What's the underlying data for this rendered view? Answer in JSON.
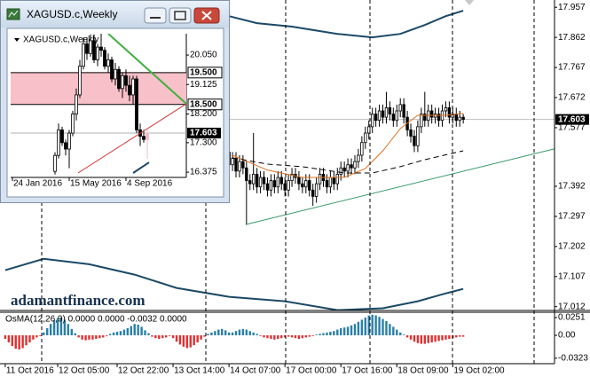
{
  "window": {
    "title": "XAGUSD.c,Weekly"
  },
  "watermark": "adamantfinance.com",
  "chart_data": [
    {
      "type": "candlestick",
      "x": [
        64,
        65,
        66,
        67,
        68,
        69,
        70,
        71,
        72,
        73,
        74,
        75,
        76,
        77,
        78,
        79,
        80,
        81,
        82,
        83,
        84,
        85,
        86,
        87,
        88,
        89,
        90,
        91,
        92,
        93,
        94,
        95,
        96,
        97,
        98,
        99,
        100,
        101,
        102,
        103,
        104,
        105,
        106,
        107,
        108,
        109,
        110,
        111,
        112,
        113,
        114,
        115,
        116,
        117,
        118,
        119,
        120,
        121,
        122,
        123,
        124,
        125,
        126,
        127,
        128,
        129,
        130,
        131
      ],
      "open": [
        17.5,
        17.46,
        17.48,
        17.44,
        17.47,
        17.45,
        17.41,
        17.4,
        17.43,
        17.39,
        17.42,
        17.4,
        17.38,
        17.41,
        17.39,
        17.42,
        17.4,
        17.38,
        17.41,
        17.43,
        17.42,
        17.4,
        17.39,
        17.41,
        17.38,
        17.36,
        17.4,
        17.43,
        17.41,
        17.39,
        17.42,
        17.4,
        17.43,
        17.45,
        17.44,
        17.46,
        17.45,
        17.47,
        17.49,
        17.53,
        17.56,
        17.58,
        17.62,
        17.6,
        17.63,
        17.61,
        17.64,
        17.62,
        17.6,
        17.63,
        17.65,
        17.61,
        17.57,
        17.55,
        17.52,
        17.58,
        17.62,
        17.6,
        17.63,
        17.61,
        17.62,
        17.6,
        17.63,
        17.64,
        17.61,
        17.62,
        17.6,
        17.61
      ],
      "high": [
        17.52,
        17.5,
        17.5,
        17.49,
        17.49,
        17.47,
        17.43,
        17.56,
        17.45,
        17.44,
        17.44,
        17.42,
        17.43,
        17.43,
        17.44,
        17.44,
        17.42,
        17.43,
        17.45,
        17.45,
        17.44,
        17.42,
        17.43,
        17.43,
        17.4,
        17.42,
        17.45,
        17.45,
        17.43,
        17.44,
        17.44,
        17.45,
        17.47,
        17.47,
        17.48,
        17.48,
        17.49,
        17.51,
        17.55,
        17.58,
        17.6,
        17.64,
        17.64,
        17.65,
        17.65,
        17.69,
        17.66,
        17.64,
        17.65,
        17.67,
        17.67,
        17.63,
        17.59,
        17.57,
        17.6,
        17.64,
        17.69,
        17.65,
        17.65,
        17.64,
        17.64,
        17.65,
        17.66,
        17.66,
        17.64,
        17.64,
        17.63,
        17.62
      ],
      "low": [
        17.44,
        17.44,
        17.42,
        17.42,
        17.43,
        17.27,
        17.38,
        17.38,
        17.37,
        17.37,
        17.38,
        17.36,
        17.36,
        17.37,
        17.37,
        17.38,
        17.36,
        17.36,
        17.39,
        17.4,
        17.38,
        17.37,
        17.37,
        17.36,
        17.33,
        17.34,
        17.38,
        17.39,
        17.37,
        17.37,
        17.38,
        17.38,
        17.41,
        17.42,
        17.42,
        17.43,
        17.43,
        17.45,
        17.47,
        17.51,
        17.54,
        17.56,
        17.58,
        17.58,
        17.59,
        17.59,
        17.6,
        17.58,
        17.58,
        17.61,
        17.59,
        17.55,
        17.53,
        17.5,
        17.5,
        17.56,
        17.58,
        17.58,
        17.59,
        17.59,
        17.58,
        17.58,
        17.61,
        17.59,
        17.59,
        17.58,
        17.58,
        17.59
      ],
      "close": [
        17.46,
        17.48,
        17.44,
        17.47,
        17.45,
        17.41,
        17.4,
        17.43,
        17.39,
        17.42,
        17.4,
        17.38,
        17.41,
        17.39,
        17.42,
        17.4,
        17.38,
        17.41,
        17.43,
        17.42,
        17.4,
        17.39,
        17.41,
        17.38,
        17.36,
        17.4,
        17.43,
        17.41,
        17.39,
        17.42,
        17.4,
        17.43,
        17.45,
        17.44,
        17.46,
        17.45,
        17.47,
        17.49,
        17.53,
        17.56,
        17.58,
        17.62,
        17.6,
        17.63,
        17.61,
        17.64,
        17.62,
        17.6,
        17.63,
        17.65,
        17.61,
        17.57,
        17.55,
        17.52,
        17.58,
        17.62,
        17.6,
        17.63,
        17.61,
        17.62,
        17.6,
        17.63,
        17.64,
        17.61,
        17.62,
        17.6,
        17.61,
        17.603
      ],
      "color_up": "#ffffff",
      "color_down": "#000000",
      "xlim": [
        -1.5,
        157.1
      ],
      "ylim": [
        17.0,
        17.98
      ],
      "yticks": [
        17.957,
        17.862,
        17.767,
        17.672,
        17.577,
        17.392,
        17.297,
        17.202,
        17.107,
        17.012
      ],
      "xticks": [
        {
          "value": 0,
          "label": "11 Oct 2016"
        },
        {
          "value": 15,
          "label": "12 Oct 05:00"
        },
        {
          "value": 32,
          "label": "12 Oct 22:00"
        },
        {
          "value": 48,
          "label": "13 Oct 14:00"
        },
        {
          "value": 64,
          "label": "14 Oct 07:00"
        },
        {
          "value": 80,
          "label": "17 Oct 00:00"
        },
        {
          "value": 96,
          "label": "17 Oct 16:00"
        },
        {
          "value": 112,
          "label": "18 Oct 09:00"
        },
        {
          "value": 128,
          "label": "19 Oct 02:00"
        }
      ],
      "current_price": 17.603,
      "overlays": [
        {
          "color": "#1b4966",
          "width": 2,
          "x": [
            64,
            72,
            82,
            95,
            105,
            113,
            120,
            126,
            131
          ],
          "values": [
            17.929,
            17.907,
            17.896,
            17.873,
            17.862,
            17.873,
            17.901,
            17.929,
            17.946
          ]
        },
        {
          "color": "#1b4966",
          "width": 2,
          "x": [
            0,
            11,
            24,
            37,
            49,
            64,
            80,
            95,
            108,
            118,
            125,
            131
          ],
          "values": [
            17.127,
            17.163,
            17.146,
            17.113,
            17.071,
            17.043,
            17.029,
            17.001,
            17.007,
            17.029,
            17.051,
            17.068
          ]
        },
        {
          "color": "#e07020",
          "width": 1,
          "x": [
            65,
            75,
            85,
            97,
            103,
            108,
            113,
            118,
            126,
            131
          ],
          "values": [
            17.49,
            17.443,
            17.42,
            17.42,
            17.448,
            17.504,
            17.574,
            17.616,
            17.616,
            17.622
          ]
        },
        {
          "color": "#000000",
          "width": 1,
          "dash": true,
          "x": [
            65,
            75,
            85,
            97,
            105,
            113,
            120,
            131
          ],
          "values": [
            17.482,
            17.462,
            17.454,
            17.434,
            17.434,
            17.454,
            17.476,
            17.504
          ]
        },
        {
          "color": "#3a9a6a",
          "width": 1,
          "x": [
            69,
            157
          ],
          "values": [
            17.272,
            17.51
          ]
        }
      ]
    },
    {
      "type": "bar",
      "title": "OsMA(12,26,9) 0.0000 0.0000 -0.0032 0.0000",
      "x": [
        0,
        1,
        2,
        3,
        4,
        5,
        6,
        7,
        8,
        9,
        10,
        11,
        12,
        13,
        14,
        15,
        16,
        17,
        18,
        19,
        20,
        21,
        22,
        23,
        24,
        25,
        26,
        27,
        28,
        29,
        30,
        31,
        32,
        33,
        34,
        35,
        36,
        37,
        38,
        39,
        40,
        41,
        42,
        43,
        44,
        45,
        46,
        47,
        48,
        49,
        50,
        51,
        52,
        53,
        54,
        55,
        56,
        57,
        58,
        59,
        60,
        61,
        62,
        63,
        64,
        65,
        66,
        67,
        68,
        69,
        70,
        71,
        72,
        73,
        74,
        75,
        76,
        77,
        78,
        79,
        80,
        81,
        82,
        83,
        84,
        85,
        86,
        87,
        88,
        89,
        90,
        91,
        92,
        93,
        94,
        95,
        96,
        97,
        98,
        99,
        100,
        101,
        102,
        103,
        104,
        105,
        106,
        107,
        108,
        109,
        110,
        111,
        112,
        113,
        114,
        115,
        116,
        117,
        118,
        119,
        120,
        121,
        122,
        123,
        124,
        125,
        126,
        127,
        128,
        129,
        130,
        131
      ],
      "values": [
        -0.005,
        -0.01,
        -0.015,
        -0.019,
        -0.02,
        -0.018,
        -0.014,
        -0.01,
        -0.006,
        -0.003,
        -0.001,
        0.004,
        0.01,
        0.016,
        0.021,
        0.024,
        0.025,
        0.022,
        0.016,
        0.009,
        0.003,
        -0.003,
        -0.006,
        -0.007,
        -0.006,
        -0.006,
        -0.005,
        -0.004,
        -0.003,
        -0.001,
        0.002,
        0.004,
        0.005,
        0.006,
        0.008,
        0.01,
        0.013,
        0.016,
        0.015,
        0.012,
        0.007,
        0.003,
        -0.002,
        -0.004,
        -0.005,
        -0.004,
        -0.003,
        -0.001,
        -0.004,
        -0.009,
        -0.013,
        -0.016,
        -0.018,
        -0.017,
        -0.014,
        -0.01,
        -0.006,
        -0.002,
        0.002,
        0.004,
        0.006,
        0.008,
        0.009,
        0.007,
        0.004,
        0.004,
        0.006,
        0.008,
        0.009,
        0.008,
        0.006,
        0.004,
        0.002,
        -0.001,
        -0.003,
        -0.004,
        -0.005,
        -0.006,
        -0.005,
        -0.004,
        -0.003,
        -0.002,
        -0.003,
        -0.004,
        -0.005,
        -0.004,
        -0.003,
        -0.002,
        -0.001,
        0.001,
        0.002,
        0.003,
        0.004,
        0.005,
        0.006,
        0.008,
        0.01,
        0.011,
        0.012,
        0.014,
        0.016,
        0.019,
        0.022,
        0.025,
        0.028,
        0.029,
        0.028,
        0.026,
        0.023,
        0.02,
        0.016,
        0.012,
        0.008,
        0.004,
        0.001,
        -0.003,
        -0.006,
        -0.009,
        -0.011,
        -0.012,
        -0.012,
        -0.011,
        -0.01,
        -0.009,
        -0.008,
        -0.007,
        -0.006,
        -0.005,
        -0.004,
        -0.003,
        -0.002,
        -0.002
      ],
      "color_pos": "#2a7fa8",
      "color_neg": "#e03030",
      "xlim": [
        -1.5,
        157.1
      ],
      "ylim": [
        -0.0375,
        0.0325
      ],
      "yticks": [
        0.0251,
        {
          "value": 0,
          "label": "0.00"
        },
        -0.0323
      ]
    },
    {
      "type": "candlestick",
      "title": "XAGUSD.c,Weekly",
      "x": [
        12,
        13,
        14,
        15,
        16,
        17,
        18,
        19,
        20,
        21,
        22,
        23,
        24,
        25,
        26,
        27,
        28,
        29,
        30,
        31,
        32,
        33,
        34,
        35,
        36,
        37,
        38
      ],
      "open": [
        16.4,
        16.9,
        17.7,
        17.3,
        17.1,
        17.6,
        18.2,
        18.8,
        19.7,
        20.4,
        20.1,
        20.5,
        19.9,
        20.3,
        20.2,
        19.7,
        19.9,
        19.3,
        19.6,
        19.0,
        19.4,
        19.1,
        18.8,
        19.3,
        17.7,
        17.5,
        17.4
      ],
      "high": [
        17.0,
        17.9,
        17.8,
        17.4,
        17.7,
        18.3,
        19.0,
        19.9,
        20.6,
        20.6,
        20.7,
        20.7,
        20.4,
        20.72,
        20.3,
        20.1,
        20.0,
        19.8,
        19.7,
        19.5,
        19.6,
        19.4,
        19.4,
        19.4,
        17.9,
        17.7,
        17.7
      ],
      "low": [
        16.3,
        16.8,
        17.2,
        16.9,
        16.5,
        17.5,
        18.0,
        18.7,
        19.6,
        19.9,
        20.0,
        19.8,
        19.7,
        20.0,
        19.6,
        19.5,
        19.2,
        19.1,
        18.9,
        18.7,
        18.9,
        18.6,
        18.5,
        17.6,
        17.2,
        17.3,
        16.8
      ],
      "close": [
        16.9,
        17.7,
        17.3,
        17.1,
        17.6,
        18.2,
        18.8,
        19.7,
        20.4,
        20.1,
        20.5,
        19.9,
        20.3,
        20.2,
        19.7,
        19.9,
        19.3,
        19.6,
        19.0,
        19.4,
        19.1,
        18.8,
        19.3,
        17.7,
        17.5,
        17.4,
        17.603
      ],
      "color_up": "#ffffff",
      "color_down": "#000000",
      "color_current": "#f4b8c4",
      "xlim": [
        -0.5,
        49
      ],
      "ylim": [
        16.21,
        20.72
      ],
      "yticks": [
        {
          "value": 20.05,
          "label": "20.050"
        },
        {
          "value": 19.125,
          "label": "19.125"
        },
        {
          "value": 18.2,
          "label": "18.200"
        },
        {
          "value": 17.3,
          "label": "17.300"
        },
        {
          "value": 16.375,
          "label": "16.375"
        }
      ],
      "xticks": [
        {
          "value": 0,
          "label": "24 Jan 2016"
        },
        {
          "value": 16,
          "label": "15 May 2016"
        },
        {
          "value": 32,
          "label": "4 Sep 2016"
        }
      ],
      "zone": [
        18.5,
        19.5
      ],
      "zone_color": "#f8c0c8",
      "levels": [
        {
          "value": 19.5,
          "label": "19.500"
        },
        {
          "value": 18.5,
          "label": "18.500"
        }
      ],
      "current_price": 17.603,
      "overlays": [
        {
          "color": "#40b040",
          "width": 2,
          "x": [
            27,
            49
          ],
          "values": [
            20.72,
            18.52
          ]
        },
        {
          "color": "#d03030",
          "width": 1,
          "x": [
            18.5,
            49
          ],
          "values": [
            16.35,
            18.52
          ]
        },
        {
          "color": "#1b4966",
          "width": 2,
          "x": [
            34,
            38.5
          ],
          "values": [
            16.35,
            16.68
          ]
        }
      ]
    }
  ]
}
